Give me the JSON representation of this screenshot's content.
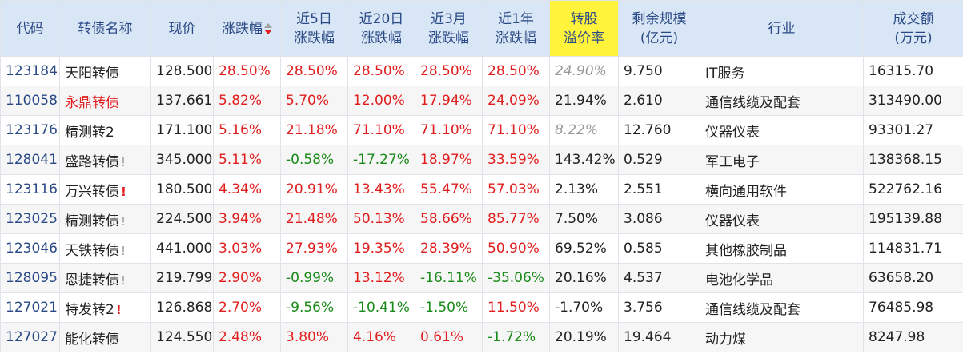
{
  "headers": {
    "code": "代码",
    "name": "转债名称",
    "price": "现价",
    "change": "涨跌幅",
    "chg5d_line1": "近5日",
    "chg5d_line2": "涨跌幅",
    "chg20d_line1": "近20日",
    "chg20d_line2": "涨跌幅",
    "chg3m_line1": "近3月",
    "chg3m_line2": "涨跌幅",
    "chg1y_line1": "近1年",
    "chg1y_line2": "涨跌幅",
    "premium_line1": "转股",
    "premium_line2": "溢价率",
    "scale_line1": "剩余规模",
    "scale_line2": "(亿元)",
    "industry": "行业",
    "volume_line1": "成交额",
    "volume_line2": "(万元)"
  },
  "colors": {
    "up": "#e01e1e",
    "down": "#1a8a1a",
    "header_bg": "#d9e6f5",
    "premium_header_bg": "#fff33b",
    "code_blue": "#2a4a86"
  },
  "rows": [
    {
      "code": "123184",
      "name": "天阳转债",
      "flag": "",
      "price": "128.500",
      "change": "28.50%",
      "chg5d": "28.50%",
      "chg20d": "28.50%",
      "chg3m": "28.50%",
      "chg1y": "28.50%",
      "premium": "24.90%",
      "scale": "9.750",
      "industry": "IT服务",
      "volume": "16315.70"
    },
    {
      "code": "110058",
      "name": "永鼎转债",
      "flag": "",
      "price": "137.661",
      "change": "5.82%",
      "chg5d": "5.70%",
      "chg20d": "12.00%",
      "chg3m": "17.94%",
      "chg1y": "24.09%",
      "premium": "21.94%",
      "scale": "2.610",
      "industry": "通信线缆及配套",
      "volume": "313490.00"
    },
    {
      "code": "123176",
      "name": "精测转2",
      "flag": "",
      "price": "171.100",
      "change": "5.16%",
      "chg5d": "21.18%",
      "chg20d": "71.10%",
      "chg3m": "71.10%",
      "chg1y": "71.10%",
      "premium": "8.22%",
      "scale": "12.760",
      "industry": "仪器仪表",
      "volume": "93301.27"
    },
    {
      "code": "128041",
      "name": "盛路转债",
      "flag": "!",
      "price": "345.000",
      "change": "5.11%",
      "chg5d": "-0.58%",
      "chg20d": "-17.27%",
      "chg3m": "18.97%",
      "chg1y": "33.59%",
      "premium": "143.42%",
      "scale": "0.529",
      "industry": "军工电子",
      "volume": "138368.15"
    },
    {
      "code": "123116",
      "name": "万兴转债",
      "flag": "!",
      "price": "180.500",
      "change": "4.34%",
      "chg5d": "20.91%",
      "chg20d": "13.43%",
      "chg3m": "55.47%",
      "chg1y": "57.03%",
      "premium": "2.13%",
      "scale": "2.551",
      "industry": "横向通用软件",
      "volume": "522762.16"
    },
    {
      "code": "123025",
      "name": "精测转债",
      "flag": "!",
      "price": "224.500",
      "change": "3.94%",
      "chg5d": "21.48%",
      "chg20d": "50.13%",
      "chg3m": "58.66%",
      "chg1y": "85.77%",
      "premium": "7.50%",
      "scale": "3.086",
      "industry": "仪器仪表",
      "volume": "195139.88"
    },
    {
      "code": "123046",
      "name": "天铁转债",
      "flag": "!",
      "price": "441.000",
      "change": "3.03%",
      "chg5d": "27.93%",
      "chg20d": "19.35%",
      "chg3m": "28.39%",
      "chg1y": "50.90%",
      "premium": "69.52%",
      "scale": "0.585",
      "industry": "其他橡胶制品",
      "volume": "114831.71"
    },
    {
      "code": "128095",
      "name": "恩捷转债",
      "flag": "!",
      "price": "219.799",
      "change": "2.90%",
      "chg5d": "-0.99%",
      "chg20d": "13.12%",
      "chg3m": "-16.11%",
      "chg1y": "-35.06%",
      "premium": "20.16%",
      "scale": "4.537",
      "industry": "电池化学品",
      "volume": "63658.20"
    },
    {
      "code": "127021",
      "name": "特发转2",
      "flag": "!",
      "price": "126.868",
      "change": "2.70%",
      "chg5d": "-9.56%",
      "chg20d": "-10.41%",
      "chg3m": "-1.50%",
      "chg1y": "11.50%",
      "premium": "-1.70%",
      "scale": "3.756",
      "industry": "通信线缆及配套",
      "volume": "76485.98"
    },
    {
      "code": "127027",
      "name": "能化转债",
      "flag": "",
      "price": "124.550",
      "change": "2.48%",
      "chg5d": "3.80%",
      "chg20d": "4.16%",
      "chg3m": "0.61%",
      "chg1y": "-1.72%",
      "premium": "20.19%",
      "scale": "19.464",
      "industry": "动力煤",
      "volume": "8247.98"
    }
  ],
  "row_styles": {
    "name_red_rows": [
      1
    ],
    "flag_red_rows": [
      4,
      8
    ],
    "premium_italic_rows": [
      0,
      2
    ]
  }
}
